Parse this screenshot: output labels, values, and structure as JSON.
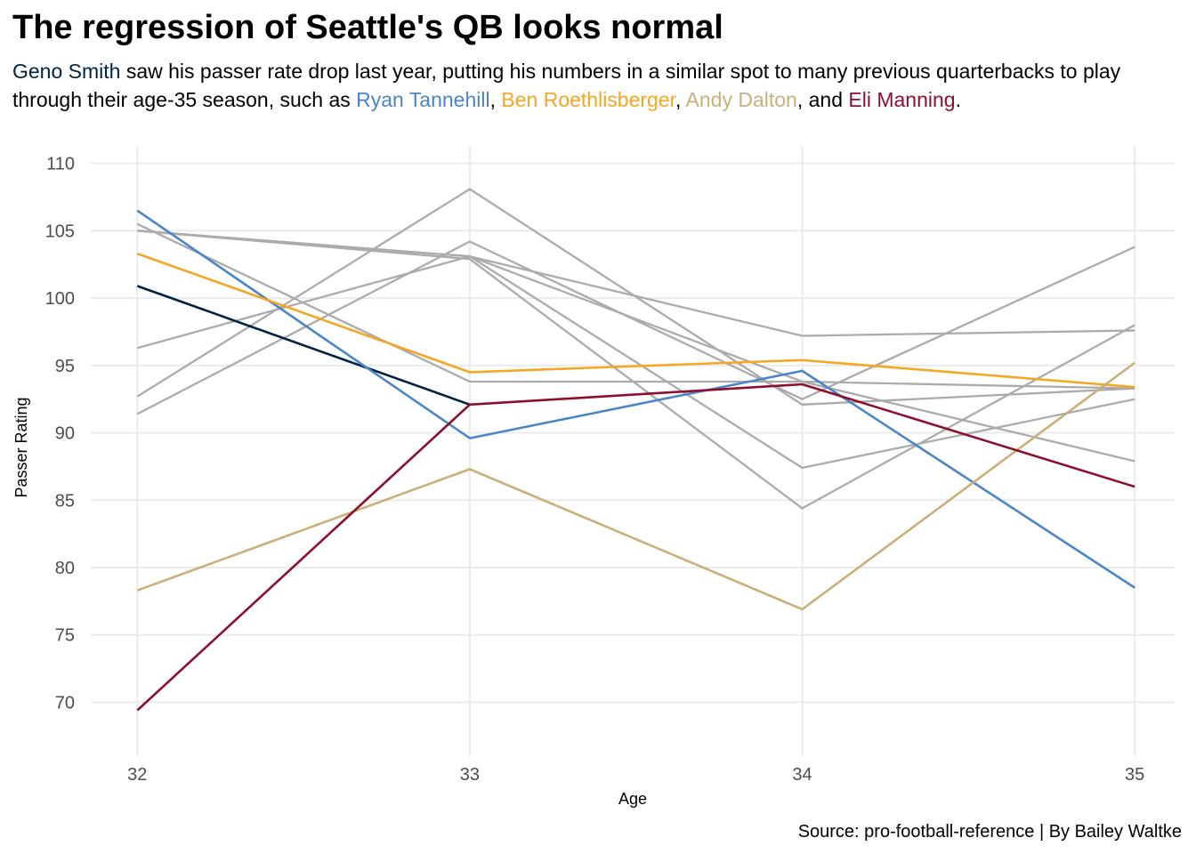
{
  "title": "The regression of Seattle's QB looks normal",
  "subtitle": {
    "seg0": "Geno Smith",
    "seg1": " saw his passer rate drop last year, putting his numbers in a similar spot to many previous quarterbacks to play through their age-35 season, such as ",
    "seg2": "Ryan Tannehill",
    "seg3": ", ",
    "seg4": "Ben Roethlisberger",
    "seg5": ", ",
    "seg6": "Andy Dalton",
    "seg7": ", and ",
    "seg8": "Eli Manning",
    "seg9": "."
  },
  "caption": "Source: pro-football-reference | By Bailey Waltke",
  "chart_data": {
    "type": "line",
    "title": "The regression of Seattle's QB looks normal",
    "xlabel": "Age",
    "ylabel": "Passer Rating",
    "x": [
      32,
      33,
      34,
      35
    ],
    "xlim": [
      31.86,
      35.12
    ],
    "ylim": [
      66.0,
      111.3
    ],
    "yticks": [
      70,
      75,
      80,
      85,
      90,
      95,
      100,
      105,
      110
    ],
    "xticks": [
      32,
      33,
      34,
      35
    ],
    "grid": true,
    "legend": "none",
    "highlight_series": [
      {
        "name": "Geno Smith",
        "color": "#002244",
        "values": [
          100.9,
          92.1,
          null,
          null
        ]
      },
      {
        "name": "Ryan Tannehill",
        "color": "#4B85C8",
        "values": [
          106.5,
          89.6,
          94.6,
          78.5
        ]
      },
      {
        "name": "Ben Roethlisberger",
        "color": "#F5A623",
        "values": [
          103.3,
          94.5,
          95.4,
          93.4
        ]
      },
      {
        "name": "Andy Dalton",
        "color": "#C9B07A",
        "values": [
          78.3,
          87.3,
          76.9,
          95.2
        ]
      },
      {
        "name": "Eli Manning",
        "color": "#8C0F2E",
        "values": [
          69.4,
          92.1,
          93.6,
          86.0
        ]
      }
    ],
    "background_series": [
      {
        "values": [
          105.0,
          103.1,
          97.2,
          97.6
        ]
      },
      {
        "values": [
          105.5,
          93.8,
          93.8,
          93.3
        ]
      },
      {
        "values": [
          96.3,
          103.1,
          87.4,
          92.5
        ]
      },
      {
        "values": [
          92.7,
          108.1,
          92.1,
          93.3
        ]
      },
      {
        "values": [
          91.4,
          104.2,
          92.5,
          103.8
        ]
      },
      {
        "values": [
          105.0,
          102.9,
          84.4,
          98.0
        ]
      },
      {
        "values": [
          105.0,
          103.1,
          93.8,
          87.9
        ]
      }
    ],
    "background_color": "#ABABAB"
  }
}
